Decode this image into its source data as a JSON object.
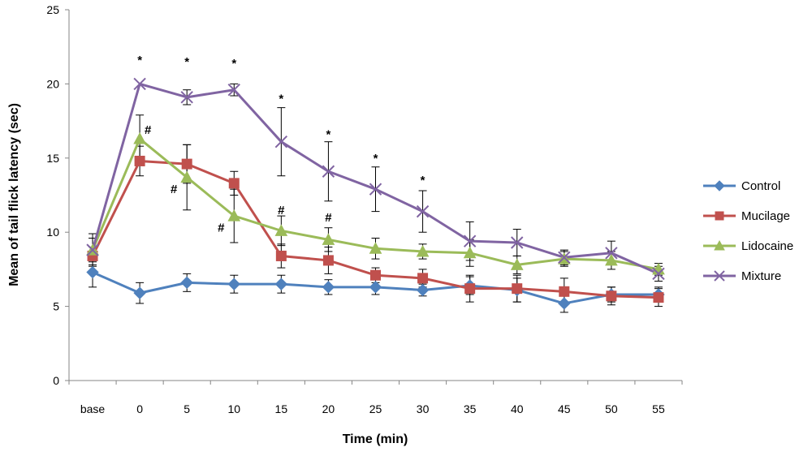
{
  "chart_data": {
    "type": "line",
    "xlabel": "Time (min)",
    "ylabel": "Mean of tail flick latency (sec)",
    "categories": [
      "base",
      "0",
      "5",
      "10",
      "15",
      "20",
      "25",
      "30",
      "35",
      "40",
      "45",
      "50",
      "55"
    ],
    "ylim": [
      0,
      25
    ],
    "yticks": [
      0,
      5,
      10,
      15,
      20,
      25
    ],
    "grid": false,
    "legend_position": "right",
    "series": [
      {
        "name": "Control",
        "color": "#4F81BD",
        "marker": "diamond",
        "values": [
          7.3,
          5.9,
          6.6,
          6.5,
          6.5,
          6.3,
          6.3,
          6.1,
          6.4,
          6.1,
          5.2,
          5.8,
          5.8
        ],
        "errors": [
          1.0,
          0.7,
          0.6,
          0.6,
          0.6,
          0.5,
          0.5,
          0.4,
          0.6,
          0.8,
          0.6,
          0.5,
          0.5
        ]
      },
      {
        "name": "Mucilage",
        "color": "#C0504D",
        "marker": "square",
        "values": [
          8.4,
          14.8,
          14.6,
          13.3,
          8.4,
          8.1,
          7.1,
          6.9,
          6.2,
          6.2,
          6.0,
          5.7,
          5.6
        ],
        "errors": [
          0.6,
          1.0,
          1.3,
          0.8,
          0.8,
          0.9,
          0.5,
          0.6,
          0.9,
          0.9,
          0.9,
          0.6,
          0.6
        ]
      },
      {
        "name": "Lidocaine",
        "color": "#9BBB59",
        "marker": "triangle",
        "values": [
          8.8,
          16.3,
          13.7,
          11.1,
          10.1,
          9.5,
          8.9,
          8.7,
          8.6,
          7.8,
          8.2,
          8.1,
          7.5
        ],
        "errors": [
          1.1,
          1.6,
          2.2,
          1.8,
          1.0,
          0.8,
          0.7,
          0.5,
          0.9,
          0.6,
          0.5,
          0.6,
          0.4
        ]
      },
      {
        "name": "Mixture",
        "color": "#8064A2",
        "marker": "x",
        "values": [
          8.8,
          20.0,
          19.1,
          19.6,
          16.1,
          14.1,
          12.9,
          11.4,
          9.4,
          9.3,
          8.3,
          8.6,
          7.2
        ],
        "errors": [
          0.8,
          0.0,
          0.5,
          0.4,
          2.3,
          2.0,
          1.5,
          1.4,
          1.3,
          0.9,
          0.5,
          0.8,
          0.5
        ]
      }
    ],
    "annotations": [
      {
        "text": "*",
        "category": "0",
        "y": 21.6
      },
      {
        "text": "*",
        "category": "5",
        "y": 21.5
      },
      {
        "text": "*",
        "category": "10",
        "y": 21.4
      },
      {
        "text": "*",
        "category": "15",
        "y": 19.0
      },
      {
        "text": "*",
        "category": "20",
        "y": 16.6
      },
      {
        "text": "*",
        "category": "25",
        "y": 15.0
      },
      {
        "text": "*",
        "category": "30",
        "y": 13.5
      },
      {
        "text": "#",
        "category": "0",
        "y": 16.9,
        "offset": "right"
      },
      {
        "text": "#",
        "category": "5",
        "y": 12.9,
        "offset": "left"
      },
      {
        "text": "#",
        "category": "10",
        "y": 10.3,
        "offset": "left"
      },
      {
        "text": "#",
        "category": "15",
        "y": 11.5
      },
      {
        "text": "#",
        "category": "20",
        "y": 11.0
      }
    ]
  }
}
